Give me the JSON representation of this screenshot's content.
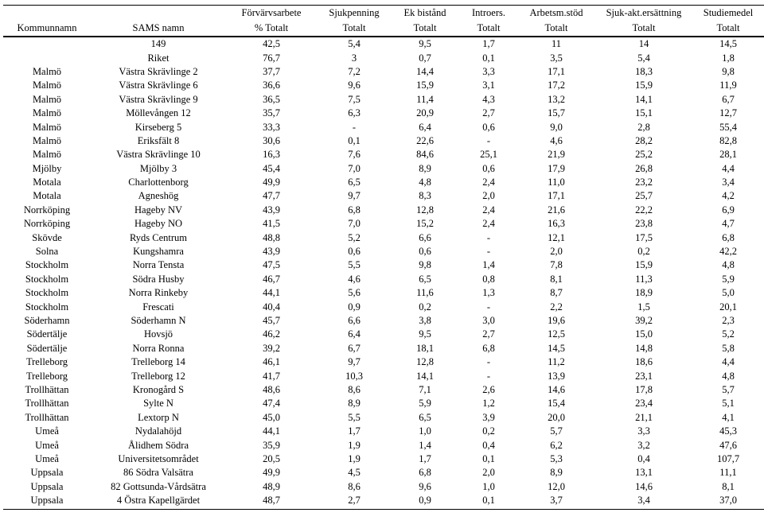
{
  "header_top": [
    "",
    "",
    "Förvärvsarbete",
    "Sjukpenning",
    "Ek bistånd",
    "Introers.",
    "Arbetsm.stöd",
    "Sjuk-akt.ersättning",
    "Studiemedel"
  ],
  "header_bot": [
    "Kommunnamn",
    "SAMS namn",
    "% Totalt",
    "Totalt",
    "Totalt",
    "Totalt",
    "Totalt",
    "Totalt",
    "Totalt"
  ],
  "top_rows": [
    [
      "",
      "149",
      "42,5",
      "5,4",
      "9,5",
      "1,7",
      "11",
      "14",
      "14,5"
    ],
    [
      "",
      "Riket",
      "76,7",
      "3",
      "0,7",
      "0,1",
      "3,5",
      "5,4",
      "1,8"
    ]
  ],
  "rows": [
    [
      "Malmö",
      "Västra Skrävlinge 2",
      "37,7",
      "7,2",
      "14,4",
      "3,3",
      "17,1",
      "18,3",
      "9,8"
    ],
    [
      "Malmö",
      "Västra Skrävlinge 6",
      "36,6",
      "9,6",
      "15,9",
      "3,1",
      "17,2",
      "15,9",
      "11,9"
    ],
    [
      "Malmö",
      "Västra Skrävlinge 9",
      "36,5",
      "7,5",
      "11,4",
      "4,3",
      "13,2",
      "14,1",
      "6,7"
    ],
    [
      "Malmö",
      "Möllevången 12",
      "35,7",
      "6,3",
      "20,9",
      "2,7",
      "15,7",
      "15,1",
      "12,7"
    ],
    [
      "Malmö",
      "Kirseberg 5",
      "33,3",
      "-",
      "6,4",
      "0,6",
      "9,0",
      "2,8",
      "55,4"
    ],
    [
      "Malmö",
      "Eriksfält 8",
      "30,6",
      "0,1",
      "22,6",
      "-",
      "4,6",
      "28,2",
      "82,8"
    ],
    [
      "Malmö",
      "Västra Skrävlinge 10",
      "16,3",
      "7,6",
      "84,6",
      "25,1",
      "21,9",
      "25,2",
      "28,1"
    ],
    [
      "Mjölby",
      "Mjölby 3",
      "45,4",
      "7,0",
      "8,9",
      "0,6",
      "17,9",
      "26,8",
      "4,4"
    ],
    [
      "Motala",
      "Charlottenborg",
      "49,9",
      "6,5",
      "4,8",
      "2,4",
      "11,0",
      "23,2",
      "3,4"
    ],
    [
      "Motala",
      "Agneshög",
      "47,7",
      "9,7",
      "8,3",
      "2,0",
      "17,1",
      "25,7",
      "4,2"
    ],
    [
      "Norrköping",
      "Hageby NV",
      "43,9",
      "6,8",
      "12,8",
      "2,4",
      "21,6",
      "22,2",
      "6,9"
    ],
    [
      "Norrköping",
      "Hageby NO",
      "41,5",
      "7,0",
      "15,2",
      "2,4",
      "16,3",
      "23,8",
      "4,7"
    ],
    [
      "Skövde",
      "Ryds Centrum",
      "48,8",
      "5,2",
      "6,6",
      "-",
      "12,1",
      "17,5",
      "6,8"
    ],
    [
      "Solna",
      "Kungshamra",
      "43,9",
      "0,6",
      "0,6",
      "-",
      "2,0",
      "0,2",
      "42,2"
    ],
    [
      "Stockholm",
      "Norra Tensta",
      "47,5",
      "5,5",
      "9,8",
      "1,4",
      "7,8",
      "15,9",
      "4,8"
    ],
    [
      "Stockholm",
      "Södra Husby",
      "46,7",
      "4,6",
      "6,5",
      "0,8",
      "8,1",
      "11,3",
      "5,9"
    ],
    [
      "Stockholm",
      "Norra Rinkeby",
      "44,1",
      "5,6",
      "11,6",
      "1,3",
      "8,7",
      "18,9",
      "5,0"
    ],
    [
      "Stockholm",
      "Frescati",
      "40,4",
      "0,9",
      "0,2",
      "-",
      "2,2",
      "1,5",
      "20,1"
    ],
    [
      "Söderhamn",
      "Söderhamn N",
      "45,7",
      "6,6",
      "3,8",
      "3,0",
      "19,6",
      "39,2",
      "2,3"
    ],
    [
      "Södertälje",
      "Hovsjö",
      "46,2",
      "6,4",
      "9,5",
      "2,7",
      "12,5",
      "15,0",
      "5,2"
    ],
    [
      "Södertälje",
      "Norra Ronna",
      "39,2",
      "6,7",
      "18,1",
      "6,8",
      "14,5",
      "14,8",
      "5,8"
    ],
    [
      "Trelleborg",
      "Trelleborg 14",
      "46,1",
      "9,7",
      "12,8",
      "-",
      "11,2",
      "18,6",
      "4,4"
    ],
    [
      "Trelleborg",
      "Trelleborg 12",
      "41,7",
      "10,3",
      "14,1",
      "-",
      "13,9",
      "23,1",
      "4,8"
    ],
    [
      "Trollhättan",
      "Kronogård S",
      "48,6",
      "8,6",
      "7,1",
      "2,6",
      "14,6",
      "17,8",
      "5,7"
    ],
    [
      "Trollhättan",
      "Sylte N",
      "47,4",
      "8,9",
      "5,9",
      "1,2",
      "15,4",
      "23,4",
      "5,1"
    ],
    [
      "Trollhättan",
      "Lextorp N",
      "45,0",
      "5,5",
      "6,5",
      "3,9",
      "20,0",
      "21,1",
      "4,1"
    ],
    [
      "Umeå",
      "Nydalahöjd",
      "44,1",
      "1,7",
      "1,0",
      "0,2",
      "5,7",
      "3,3",
      "45,3"
    ],
    [
      "Umeå",
      "Ålidhem Södra",
      "35,9",
      "1,9",
      "1,4",
      "0,4",
      "6,2",
      "3,2",
      "47,6"
    ],
    [
      "Umeå",
      "Universitetsområdet",
      "20,5",
      "1,9",
      "1,7",
      "0,1",
      "5,3",
      "0,4",
      "107,7"
    ],
    [
      "Uppsala",
      "86 Södra Valsätra",
      "49,9",
      "4,5",
      "6,8",
      "2,0",
      "8,9",
      "13,1",
      "11,1"
    ],
    [
      "Uppsala",
      "82 Gottsunda-Vårdsätra",
      "48,9",
      "8,6",
      "9,6",
      "1,0",
      "12,0",
      "14,6",
      "8,1"
    ],
    [
      "Uppsala",
      "4 Östra Kapellgärdet",
      "48,7",
      "2,7",
      "0,9",
      "0,1",
      "3,7",
      "3,4",
      "37,0"
    ]
  ]
}
